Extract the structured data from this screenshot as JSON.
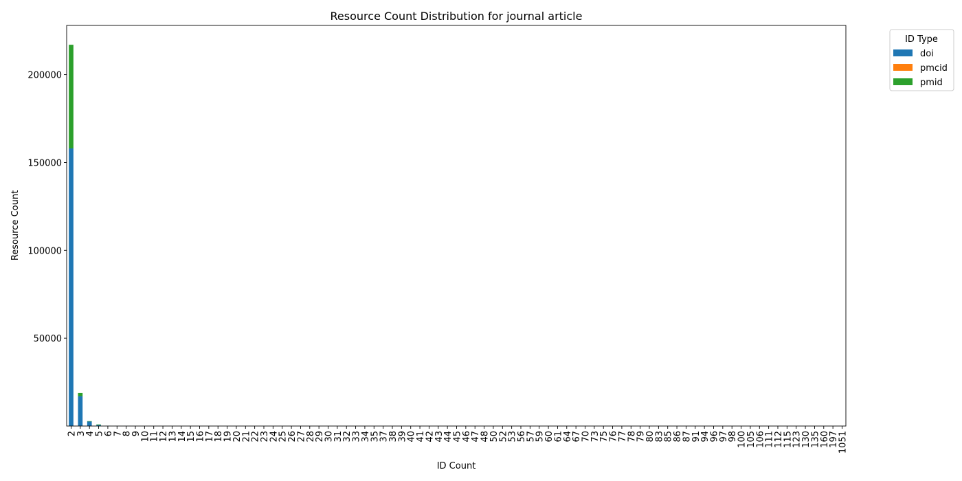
{
  "chart_data": {
    "type": "bar",
    "stacked": true,
    "title": "Resource Count Distribution for journal article",
    "xlabel": "ID Count",
    "ylabel": "Resource Count",
    "ylim": [
      0,
      228000
    ],
    "yticks": [
      50000,
      100000,
      150000,
      200000
    ],
    "grid": false,
    "legend": {
      "title": "ID Type",
      "placement": "outside-top-right"
    },
    "categories": [
      "2",
      "3",
      "4",
      "5",
      "6",
      "7",
      "8",
      "9",
      "10",
      "11",
      "12",
      "13",
      "14",
      "15",
      "16",
      "17",
      "18",
      "19",
      "20",
      "21",
      "22",
      "23",
      "24",
      "25",
      "26",
      "27",
      "28",
      "29",
      "30",
      "31",
      "32",
      "33",
      "34",
      "35",
      "37",
      "38",
      "39",
      "40",
      "41",
      "42",
      "43",
      "44",
      "45",
      "46",
      "47",
      "48",
      "50",
      "52",
      "53",
      "56",
      "57",
      "59",
      "60",
      "61",
      "64",
      "67",
      "70",
      "73",
      "75",
      "76",
      "77",
      "78",
      "79",
      "80",
      "83",
      "85",
      "86",
      "87",
      "91",
      "94",
      "96",
      "97",
      "98",
      "100",
      "105",
      "106",
      "111",
      "112",
      "115",
      "123",
      "130",
      "135",
      "160",
      "197",
      "1051"
    ],
    "series": [
      {
        "name": "doi",
        "color": "#1f77b4",
        "values": [
          158000,
          17000,
          2600,
          600,
          150,
          60,
          30,
          20,
          12,
          8,
          6,
          5,
          4,
          3,
          3,
          2,
          2,
          2,
          2,
          1,
          1,
          1,
          1,
          1,
          1,
          1,
          1,
          1,
          1,
          1,
          1,
          1,
          1,
          1,
          1,
          1,
          1,
          1,
          1,
          1,
          1,
          1,
          1,
          1,
          1,
          1,
          1,
          1,
          1,
          1,
          1,
          1,
          1,
          1,
          1,
          1,
          1,
          1,
          1,
          1,
          1,
          1,
          1,
          1,
          1,
          1,
          1,
          1,
          1,
          1,
          1,
          1,
          1,
          1,
          1,
          1,
          1,
          1,
          1,
          1,
          1,
          1,
          1,
          1,
          1
        ]
      },
      {
        "name": "pmcid",
        "color": "#ff7f0e",
        "values": [
          0,
          0,
          0,
          0,
          0,
          0,
          0,
          0,
          0,
          0,
          0,
          0,
          0,
          0,
          0,
          0,
          0,
          0,
          0,
          0,
          0,
          0,
          0,
          0,
          0,
          0,
          0,
          0,
          0,
          0,
          0,
          0,
          0,
          0,
          0,
          0,
          0,
          0,
          0,
          0,
          0,
          0,
          0,
          0,
          0,
          0,
          0,
          0,
          0,
          0,
          0,
          0,
          0,
          0,
          0,
          0,
          0,
          0,
          0,
          0,
          0,
          0,
          0,
          0,
          0,
          0,
          0,
          0,
          0,
          0,
          0,
          0,
          0,
          0,
          0,
          0,
          0,
          0,
          0,
          0,
          0,
          0,
          0,
          0,
          0
        ]
      },
      {
        "name": "pmid",
        "color": "#2ca02c",
        "values": [
          59000,
          1800,
          200,
          300,
          30,
          10,
          5,
          0,
          0,
          0,
          0,
          0,
          0,
          0,
          0,
          0,
          0,
          0,
          0,
          0,
          0,
          0,
          0,
          0,
          0,
          0,
          0,
          0,
          0,
          0,
          0,
          0,
          0,
          0,
          0,
          0,
          0,
          0,
          0,
          0,
          0,
          0,
          0,
          0,
          0,
          0,
          0,
          0,
          0,
          0,
          0,
          0,
          0,
          0,
          0,
          0,
          0,
          0,
          0,
          0,
          0,
          0,
          0,
          0,
          0,
          0,
          0,
          0,
          0,
          0,
          0,
          0,
          0,
          0,
          0,
          0,
          0,
          0,
          0,
          0,
          0,
          0,
          0,
          0,
          0
        ]
      }
    ]
  }
}
